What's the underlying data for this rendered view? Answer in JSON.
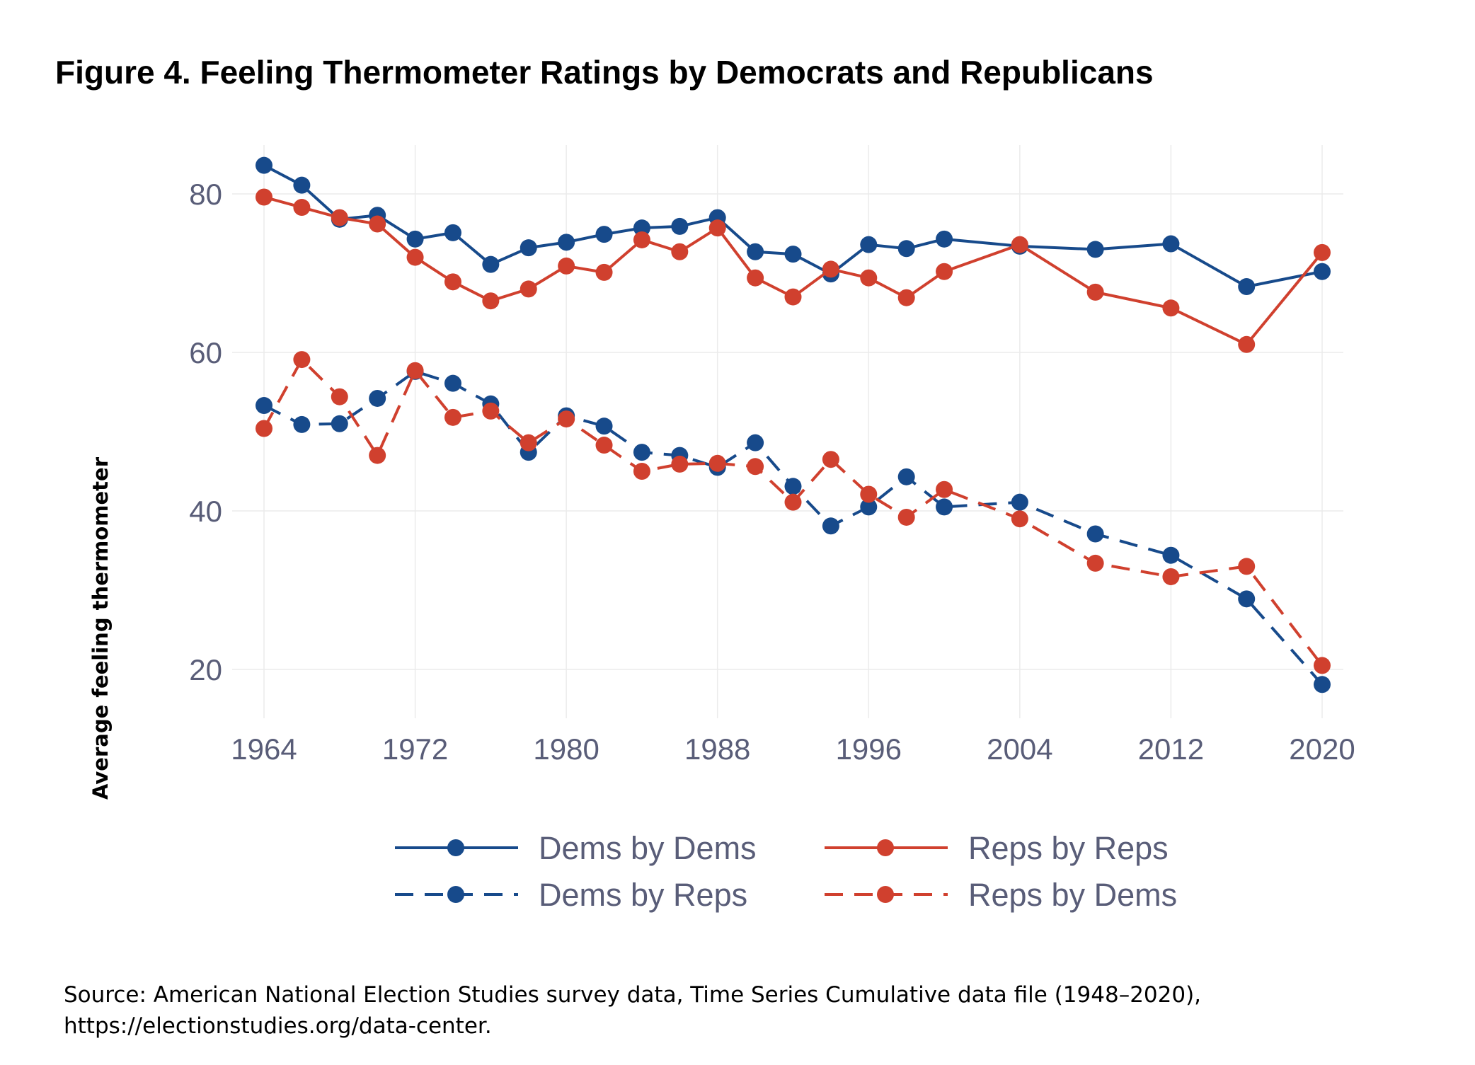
{
  "title": "Figure 4. Feeling Thermometer Ratings by Democrats and Republicans",
  "source_lines": [
    "Source: American National Election Studies survey data, Time Series Cumulative data file (1948–2020),",
    "https://electionstudies.org/data-center."
  ],
  "chart_data": {
    "type": "line",
    "title": "Figure 4. Feeling Thermometer Ratings by Democrats and Republicans",
    "xlabel": "",
    "ylabel": "Average feeling thermometer",
    "xlim": [
      1964,
      2020
    ],
    "ylim": [
      16,
      85
    ],
    "x_ticks": [
      1964,
      1972,
      1980,
      1988,
      1996,
      2004,
      2012,
      2020
    ],
    "y_ticks": [
      20,
      40,
      60,
      80
    ],
    "grid": true,
    "legend_placement": "bottom",
    "x": [
      1964,
      1966,
      1968,
      1970,
      1972,
      1974,
      1976,
      1978,
      1980,
      1982,
      1984,
      1986,
      1988,
      1990,
      1992,
      1994,
      1996,
      1998,
      2000,
      2004,
      2008,
      2012,
      2016,
      2020
    ],
    "series": [
      {
        "name": "Dems by Dems",
        "color": "#174a8b",
        "dash": false,
        "values": [
          83.6,
          81.1,
          76.8,
          77.3,
          74.3,
          75.1,
          71.1,
          73.2,
          73.9,
          74.9,
          75.7,
          75.9,
          77.0,
          72.7,
          72.4,
          69.9,
          73.6,
          73.1,
          74.3,
          73.4,
          73.0,
          73.7,
          68.3,
          70.2
        ]
      },
      {
        "name": "Reps by Reps",
        "color": "#d0402e",
        "dash": false,
        "values": [
          79.6,
          78.3,
          77.0,
          76.2,
          72.0,
          68.9,
          66.5,
          68.0,
          70.9,
          70.1,
          74.2,
          72.7,
          75.7,
          69.4,
          67.0,
          70.5,
          69.4,
          66.9,
          70.2,
          73.6,
          67.6,
          65.6,
          61.0,
          72.6
        ]
      },
      {
        "name": "Dems by Reps",
        "color": "#174a8b",
        "dash": true,
        "values": [
          53.3,
          50.9,
          51.0,
          54.2,
          57.6,
          56.1,
          53.5,
          47.4,
          52.0,
          50.7,
          47.4,
          47.0,
          45.5,
          48.6,
          43.1,
          38.1,
          40.5,
          44.3,
          40.5,
          41.1,
          37.1,
          34.4,
          28.9,
          18.1
        ]
      },
      {
        "name": "Reps by Dems",
        "color": "#d0402e",
        "dash": true,
        "values": [
          50.4,
          59.1,
          54.4,
          47.0,
          57.7,
          51.8,
          52.6,
          48.6,
          51.6,
          48.3,
          45.0,
          45.9,
          46.0,
          45.6,
          41.1,
          46.5,
          42.1,
          39.2,
          42.7,
          39.0,
          33.4,
          31.7,
          33.0,
          20.5
        ]
      }
    ]
  }
}
